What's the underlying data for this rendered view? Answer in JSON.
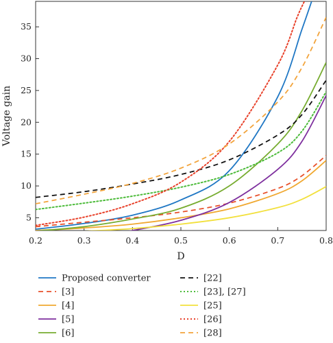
{
  "chart_data": {
    "type": "line",
    "title": "",
    "xlabel": "D",
    "ylabel": "Voltage gain",
    "xlim": [
      0.2,
      0.8
    ],
    "ylim": [
      3,
      39
    ],
    "xticks": [
      0.2,
      0.3,
      0.4,
      0.5,
      0.6,
      0.7,
      0.8
    ],
    "xtick_labels": [
      "0.2",
      "0.3",
      "0.4",
      "0.5",
      "0.6",
      "0.7",
      "0.8"
    ],
    "yticks": [
      5,
      10,
      15,
      20,
      25,
      30,
      35
    ],
    "ytick_labels": [
      "5",
      "10",
      "15",
      "20",
      "25",
      "30",
      "35"
    ],
    "grid": false,
    "legend_position": "bottom",
    "x": [
      0.2,
      0.3,
      0.4,
      0.5,
      0.6,
      0.7,
      0.75,
      0.8
    ],
    "series": [
      {
        "name": "Proposed converter",
        "color": "#1f77c4",
        "dash": "solid",
        "points": [
          [
            0.2,
            3.2
          ],
          [
            0.3,
            4.1
          ],
          [
            0.4,
            5.4
          ],
          [
            0.5,
            7.8
          ],
          [
            0.6,
            12.4
          ],
          [
            0.7,
            24.0
          ],
          [
            0.75,
            34.6
          ],
          [
            0.77,
            39.0
          ]
        ]
      },
      {
        "name": "[3]",
        "color": "#e8502a",
        "dash": "dashed",
        "points": [
          [
            0.2,
            3.6
          ],
          [
            0.3,
            4.3
          ],
          [
            0.4,
            5.0
          ],
          [
            0.5,
            5.9
          ],
          [
            0.6,
            7.3
          ],
          [
            0.7,
            9.6
          ],
          [
            0.75,
            11.6
          ],
          [
            0.8,
            14.8
          ]
        ]
      },
      {
        "name": "[4]",
        "color": "#f0a830",
        "dash": "solid",
        "points": [
          [
            0.2,
            3.0
          ],
          [
            0.3,
            3.4
          ],
          [
            0.4,
            4.0
          ],
          [
            0.5,
            5.0
          ],
          [
            0.6,
            6.4
          ],
          [
            0.7,
            8.8
          ],
          [
            0.75,
            10.8
          ],
          [
            0.8,
            14.0
          ]
        ]
      },
      {
        "name": "[5]",
        "color": "#7e2f9e",
        "dash": "solid",
        "points": [
          [
            0.38,
            2.9
          ],
          [
            0.4,
            3.0
          ],
          [
            0.5,
            4.6
          ],
          [
            0.6,
            7.4
          ],
          [
            0.7,
            12.6
          ],
          [
            0.75,
            17.0
          ],
          [
            0.8,
            24.2
          ]
        ]
      },
      {
        "name": "[6]",
        "color": "#77ac30",
        "dash": "solid",
        "points": [
          [
            0.2,
            2.9
          ],
          [
            0.3,
            3.6
          ],
          [
            0.4,
            4.8
          ],
          [
            0.5,
            6.5
          ],
          [
            0.6,
            10.0
          ],
          [
            0.7,
            16.6
          ],
          [
            0.75,
            21.8
          ],
          [
            0.8,
            29.4
          ]
        ]
      },
      {
        "name": "[22]",
        "color": "#111111",
        "dash": "dashed",
        "points": [
          [
            0.2,
            8.2
          ],
          [
            0.3,
            9.1
          ],
          [
            0.4,
            10.3
          ],
          [
            0.5,
            11.8
          ],
          [
            0.6,
            14.1
          ],
          [
            0.7,
            18.0
          ],
          [
            0.75,
            21.2
          ],
          [
            0.8,
            26.6
          ]
        ]
      },
      {
        "name": "[23], [27]",
        "color": "#4cbb3a",
        "dash": "dotted",
        "points": [
          [
            0.2,
            6.3
          ],
          [
            0.3,
            7.3
          ],
          [
            0.4,
            8.4
          ],
          [
            0.5,
            9.8
          ],
          [
            0.6,
            11.8
          ],
          [
            0.7,
            15.2
          ],
          [
            0.75,
            18.6
          ],
          [
            0.8,
            24.8
          ]
        ]
      },
      {
        "name": "[25]",
        "color": "#f2e03c",
        "dash": "solid",
        "points": [
          [
            0.2,
            2.6
          ],
          [
            0.3,
            2.9
          ],
          [
            0.4,
            3.3
          ],
          [
            0.5,
            4.0
          ],
          [
            0.6,
            5.0
          ],
          [
            0.7,
            6.6
          ],
          [
            0.75,
            7.9
          ],
          [
            0.8,
            9.9
          ]
        ]
      },
      {
        "name": "[26]",
        "color": "#e8412a",
        "dash": "dotted",
        "points": [
          [
            0.2,
            3.8
          ],
          [
            0.3,
            5.1
          ],
          [
            0.4,
            7.2
          ],
          [
            0.5,
            10.6
          ],
          [
            0.6,
            17.0
          ],
          [
            0.7,
            29.0
          ],
          [
            0.74,
            36.5
          ],
          [
            0.755,
            39.0
          ]
        ]
      },
      {
        "name": "[28]",
        "color": "#f2a33a",
        "dash": "dashed",
        "points": [
          [
            0.2,
            7.2
          ],
          [
            0.3,
            8.7
          ],
          [
            0.4,
            10.4
          ],
          [
            0.5,
            12.8
          ],
          [
            0.6,
            16.6
          ],
          [
            0.7,
            23.2
          ],
          [
            0.75,
            28.6
          ],
          [
            0.8,
            36.5
          ]
        ]
      }
    ]
  }
}
